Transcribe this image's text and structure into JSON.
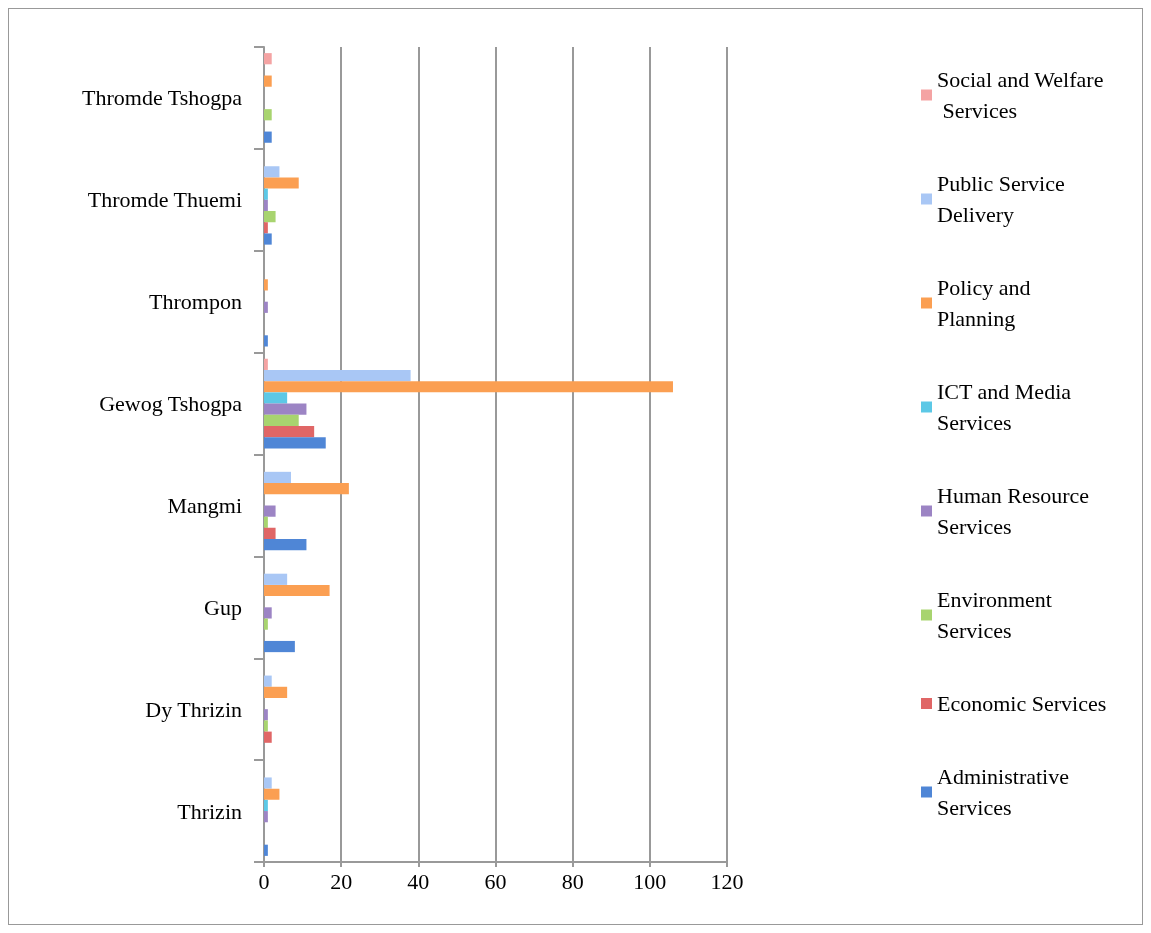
{
  "chart_data": {
    "type": "bar",
    "orientation": "horizontal",
    "categories": [
      "Thromde Tshogpa",
      "Thromde Thuemi",
      "Thrompon",
      "Gewog Tshogpa",
      "Mangmi",
      "Gup",
      "Dy Thrizin",
      "Thrizin"
    ],
    "series": [
      {
        "name": "Social and Welfare Services",
        "color": "#f4a3a3",
        "values": [
          2,
          null,
          null,
          1,
          null,
          null,
          null,
          null
        ]
      },
      {
        "name": "Public Service Delivery",
        "color": "#a9c7f5",
        "values": [
          null,
          4,
          null,
          38,
          7,
          6,
          2,
          2
        ]
      },
      {
        "name": "Policy and Planning",
        "color": "#fb9f52",
        "values": [
          2,
          9,
          1,
          106,
          22,
          17,
          6,
          4
        ]
      },
      {
        "name": "ICT and Media Services",
        "color": "#5cc8e6",
        "values": [
          null,
          1,
          null,
          6,
          null,
          null,
          null,
          1
        ]
      },
      {
        "name": "Human Resource Services",
        "color": "#9c84c4",
        "values": [
          null,
          1,
          1,
          11,
          3,
          2,
          1,
          1
        ]
      },
      {
        "name": "Environment Services",
        "color": "#a8d46f",
        "values": [
          2,
          3,
          null,
          9,
          1,
          1,
          1,
          null
        ]
      },
      {
        "name": "Economic Services",
        "color": "#e06666",
        "values": [
          null,
          1,
          null,
          13,
          3,
          null,
          2,
          null
        ]
      },
      {
        "name": "Administrative Services",
        "color": "#4f86d6",
        "values": [
          2,
          2,
          1,
          16,
          11,
          8,
          null,
          1
        ]
      }
    ],
    "xlim": [
      0,
      120
    ],
    "xticks": [
      0,
      20,
      40,
      60,
      80,
      100,
      120
    ],
    "grid": "x",
    "legend": "right"
  }
}
